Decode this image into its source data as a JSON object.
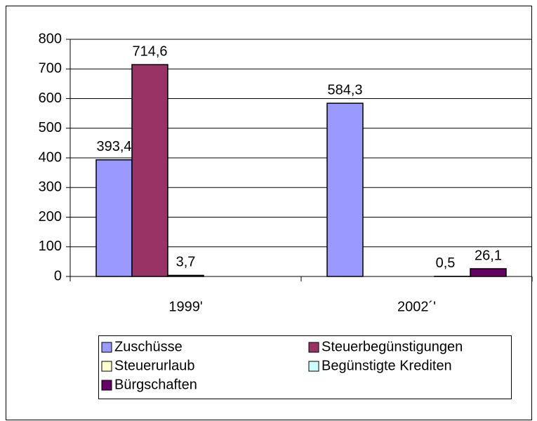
{
  "chart_data": {
    "type": "bar",
    "categories": [
      "1999'",
      "2002´'"
    ],
    "series": [
      {
        "name": "Zuschüsse",
        "color": "#9999ff",
        "values": [
          393.4,
          584.3
        ],
        "value_labels": [
          "393,4",
          "584,3"
        ]
      },
      {
        "name": "Steuerbegünstigungen",
        "color": "#993366",
        "values": [
          714.6,
          null
        ],
        "value_labels": [
          "714,6",
          null
        ]
      },
      {
        "name": "Steuerurlaub",
        "color": "#ffffcc",
        "values": [
          3.7,
          null
        ],
        "value_labels": [
          "3,7",
          null
        ]
      },
      {
        "name": "Begünstigte Krediten",
        "color": "#ccffff",
        "values": [
          null,
          0.5
        ],
        "value_labels": [
          null,
          "0,5"
        ]
      },
      {
        "name": "Bürgschaften",
        "color": "#660066",
        "values": [
          null,
          26.1
        ],
        "value_labels": [
          null,
          "26,1"
        ]
      }
    ],
    "ylim": [
      0,
      800
    ],
    "yticks": [
      0,
      100,
      200,
      300,
      400,
      500,
      600,
      700,
      800
    ],
    "grid": true,
    "legend": "bottom"
  }
}
